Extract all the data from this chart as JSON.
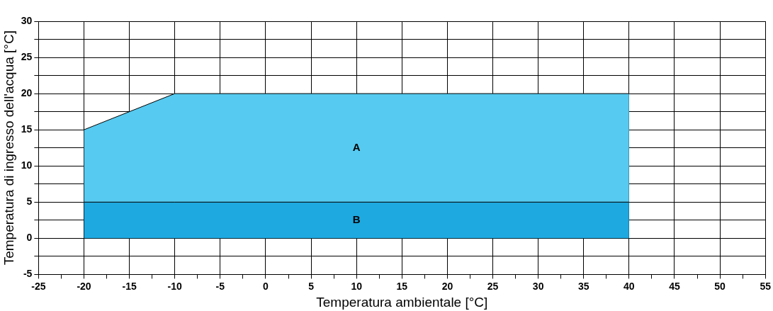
{
  "chart_data": {
    "type": "area",
    "stacked": true,
    "xlabel": "Temperatura ambientale [°C]",
    "ylabel": "Temperatura di ingresso dell'acqua [°C]",
    "x": [
      -20,
      -10,
      40
    ],
    "series": [
      {
        "name": "B",
        "color": "#1ea9e1",
        "values": [
          5,
          5,
          5
        ]
      },
      {
        "name": "A",
        "color": "#56caf0",
        "values": [
          10,
          15,
          15
        ]
      }
    ],
    "xlim": [
      -25,
      55
    ],
    "xticks": [
      -25,
      {
        "value": -22.5,
        "label": null
      },
      -20,
      {
        "value": -17.5,
        "label": null
      },
      -15,
      {
        "value": -12.5,
        "label": null
      },
      -10,
      {
        "value": -7.5,
        "label": null
      },
      -5,
      {
        "value": -2.5,
        "label": null
      },
      0,
      {
        "value": 2.5,
        "label": null
      },
      5,
      {
        "value": 7.5,
        "label": null
      },
      10,
      {
        "value": 12.5,
        "label": null
      },
      15,
      {
        "value": 17.5,
        "label": null
      },
      20,
      {
        "value": 22.5,
        "label": null
      },
      25,
      {
        "value": 27.5,
        "label": null
      },
      30,
      {
        "value": 32.5,
        "label": null
      },
      35,
      {
        "value": 37.5,
        "label": null
      },
      40,
      {
        "value": 42.5,
        "label": null
      },
      45,
      {
        "value": 47.5,
        "label": null
      },
      50,
      {
        "value": 52.5,
        "label": null
      },
      55
    ],
    "ylim": [
      -5,
      30
    ],
    "yticks": [
      -5,
      {
        "value": -2.5,
        "label": null
      },
      0,
      {
        "value": 2.5,
        "label": null
      },
      5,
      {
        "value": 7.5,
        "label": null
      },
      10,
      {
        "value": 12.5,
        "label": null
      },
      15,
      {
        "value": 17.5,
        "label": null
      },
      20,
      {
        "value": 22.5,
        "label": null
      },
      25,
      {
        "value": 27.5,
        "label": null
      },
      30
    ],
    "grid": "xy"
  }
}
